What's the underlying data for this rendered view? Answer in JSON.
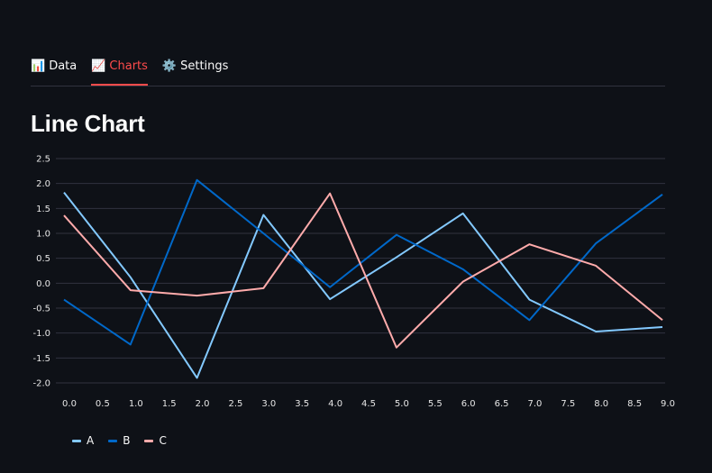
{
  "tabs": [
    {
      "icon": "📊",
      "icon_name": "bar-chart-icon",
      "label": "Data",
      "active": false
    },
    {
      "icon": "📈",
      "icon_name": "line-chart-icon",
      "label": "Charts",
      "active": true
    },
    {
      "icon": "⚙️",
      "icon_name": "gear-icon",
      "label": "Settings",
      "active": false
    }
  ],
  "page": {
    "title": "Line Chart"
  },
  "colors": {
    "background": "#0e1117",
    "accent": "#ff4b4b",
    "grid": "#31333f",
    "text": "#fafafa"
  },
  "chart_data": {
    "type": "line",
    "x": [
      0,
      1,
      2,
      3,
      4,
      5,
      6,
      7,
      8,
      9
    ],
    "xticks": [
      "0.0",
      "0.5",
      "1.0",
      "1.5",
      "2.0",
      "2.5",
      "3.0",
      "3.5",
      "4.0",
      "4.5",
      "5.0",
      "5.5",
      "6.0",
      "6.5",
      "7.0",
      "7.5",
      "8.0",
      "8.5",
      "9.0"
    ],
    "yticks": [
      "2.5",
      "2.0",
      "1.5",
      "1.0",
      "0.5",
      "0.0",
      "-0.5",
      "-1.0",
      "-1.5",
      "-2.0"
    ],
    "xlim": [
      0,
      9
    ],
    "ylim": [
      -2.0,
      2.5
    ],
    "grid": "horizontal",
    "legend_position": "bottom-left",
    "series": [
      {
        "name": "A",
        "color": "#83c9ff",
        "values": [
          1.82,
          0.12,
          -1.9,
          1.37,
          -0.32,
          0.52,
          1.4,
          -0.33,
          -0.97,
          -0.88
        ]
      },
      {
        "name": "B",
        "color": "#0068c9",
        "values": [
          -0.33,
          -1.23,
          2.07,
          1.0,
          -0.08,
          0.97,
          0.28,
          -0.74,
          0.8,
          1.78
        ]
      },
      {
        "name": "C",
        "color": "#ffabab",
        "values": [
          1.36,
          -0.14,
          -0.25,
          -0.1,
          1.8,
          -1.29,
          0.03,
          0.78,
          0.35,
          -0.74
        ]
      }
    ]
  }
}
